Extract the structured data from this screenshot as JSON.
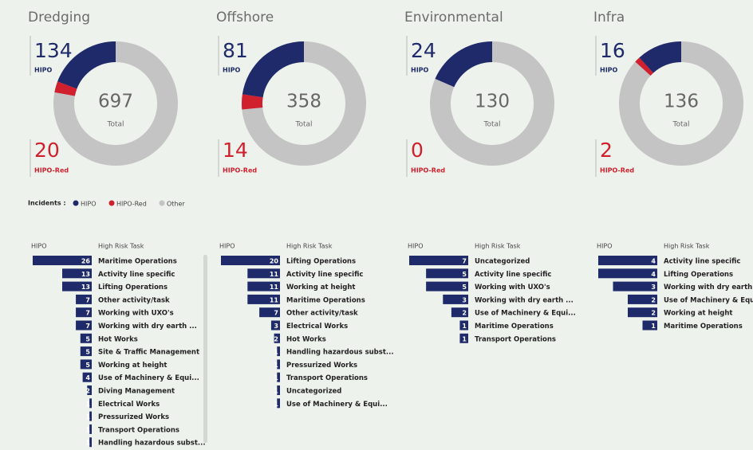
{
  "labels": {
    "hipo": "HIPO",
    "red": "HIPO-Red",
    "total": "Total",
    "task": "High Risk Task"
  },
  "legend": {
    "title": "Incidents :",
    "items": [
      {
        "name": "HIPO",
        "color": "#1f2a6b"
      },
      {
        "name": "HIPO-Red",
        "color": "#d0202e"
      },
      {
        "name": "Other",
        "color": "#c4c4c4"
      }
    ]
  },
  "panels": [
    {
      "title": "Dredging",
      "hipo": 134,
      "red": 20,
      "total": 697,
      "tasks": [
        {
          "name": "Maritime Operations",
          "value": 26
        },
        {
          "name": "Activity line specific",
          "value": 13
        },
        {
          "name": "Lifting Operations",
          "value": 13
        },
        {
          "name": "Other activity/task",
          "value": 7
        },
        {
          "name": "Working with UXO's",
          "value": 7
        },
        {
          "name": "Working with dry earth ...",
          "value": 7
        },
        {
          "name": "Hot Works",
          "value": 5
        },
        {
          "name": "Site & Traffic Management",
          "value": 5
        },
        {
          "name": "Working at height",
          "value": 5
        },
        {
          "name": "Use of Machinery & Equi...",
          "value": 4
        },
        {
          "name": "Diving Management",
          "value": 2
        },
        {
          "name": "Electrical Works",
          "value": 1
        },
        {
          "name": "Pressurized Works",
          "value": 1
        },
        {
          "name": "Transport Operations",
          "value": 1
        },
        {
          "name": "Handling hazardous subst...",
          "value": 1
        }
      ]
    },
    {
      "title": "Offshore",
      "hipo": 81,
      "red": 14,
      "total": 358,
      "tasks": [
        {
          "name": "Lifting Operations",
          "value": 20
        },
        {
          "name": "Activity line specific",
          "value": 11
        },
        {
          "name": "Working at height",
          "value": 11
        },
        {
          "name": "Maritime Operations",
          "value": 11
        },
        {
          "name": "Other activity/task",
          "value": 7
        },
        {
          "name": "Electrical Works",
          "value": 3
        },
        {
          "name": "Hot Works",
          "value": 2
        },
        {
          "name": "Handling hazardous subst...",
          "value": 1
        },
        {
          "name": "Pressurized Works",
          "value": 1
        },
        {
          "name": "Transport Operations",
          "value": 1
        },
        {
          "name": "Uncategorized",
          "value": 1
        },
        {
          "name": "Use of Machinery & Equi...",
          "value": 1
        }
      ]
    },
    {
      "title": "Environmental",
      "hipo": 24,
      "red": 0,
      "total": 130,
      "tasks": [
        {
          "name": "Uncategorized",
          "value": 7
        },
        {
          "name": "Activity line specific",
          "value": 5
        },
        {
          "name": "Working with UXO's",
          "value": 5
        },
        {
          "name": "Working with dry earth ...",
          "value": 3
        },
        {
          "name": "Use of Machinery & Equi...",
          "value": 2
        },
        {
          "name": "Maritime Operations",
          "value": 1
        },
        {
          "name": "Transport Operations",
          "value": 1
        }
      ]
    },
    {
      "title": "Infra",
      "hipo": 16,
      "red": 2,
      "total": 136,
      "tasks": [
        {
          "name": "Activity line specific",
          "value": 4
        },
        {
          "name": "Lifting Operations",
          "value": 4
        },
        {
          "name": "Working with dry earth ...",
          "value": 3
        },
        {
          "name": "Use of Machinery & Equi...",
          "value": 2
        },
        {
          "name": "Working at height",
          "value": 2
        },
        {
          "name": "Maritime Operations",
          "value": 1
        }
      ]
    }
  ]
}
